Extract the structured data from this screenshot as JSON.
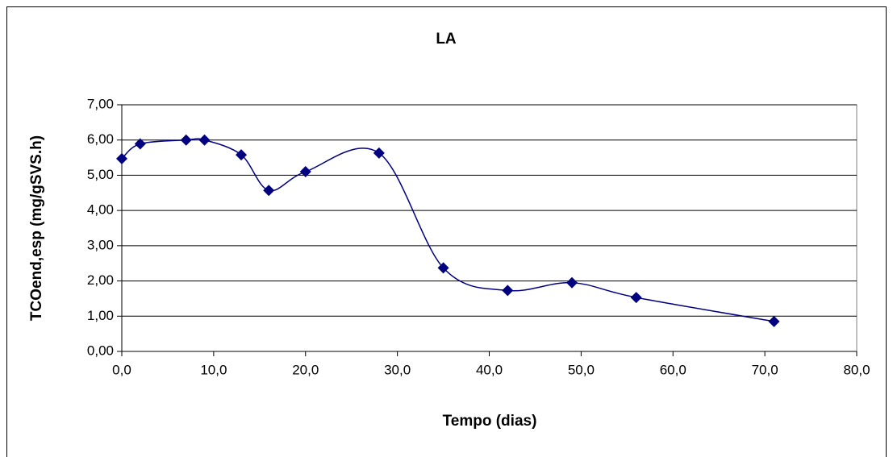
{
  "chart_data": {
    "type": "line",
    "title": "LA",
    "x_label": "Tempo (dias)",
    "y_label": "TCOend,esp (mg/gSVS.h)",
    "smooth": true,
    "grid": true,
    "marker": "diamond",
    "series": [
      {
        "name": "LA",
        "color": "#000080",
        "x": [
          0,
          2,
          7,
          9,
          13,
          16,
          20,
          28,
          35,
          42,
          49,
          56,
          71
        ],
        "values": [
          5.47,
          5.89,
          6.0,
          6.0,
          5.58,
          4.57,
          5.1,
          5.63,
          2.37,
          1.73,
          1.95,
          1.53,
          0.85
        ]
      }
    ],
    "xlim": [
      0,
      80
    ],
    "xticks": [
      {
        "value": 0,
        "label": "0,0"
      },
      {
        "value": 10,
        "label": "10,0"
      },
      {
        "value": 20,
        "label": "20,0"
      },
      {
        "value": 30,
        "label": "30,0"
      },
      {
        "value": 40,
        "label": "40,0"
      },
      {
        "value": 50,
        "label": "50,0"
      },
      {
        "value": 60,
        "label": "60,0"
      },
      {
        "value": 70,
        "label": "70,0"
      },
      {
        "value": 80,
        "label": "80,0"
      }
    ],
    "ylim": [
      0,
      7
    ],
    "yticks": [
      {
        "value": 0,
        "label": "0,00"
      },
      {
        "value": 1,
        "label": "1,00"
      },
      {
        "value": 2,
        "label": "2,00"
      },
      {
        "value": 3,
        "label": "3,00"
      },
      {
        "value": 4,
        "label": "4,00"
      },
      {
        "value": 5,
        "label": "5,00"
      },
      {
        "value": 6,
        "label": "6,00"
      },
      {
        "value": 7,
        "label": "7,00"
      }
    ]
  }
}
